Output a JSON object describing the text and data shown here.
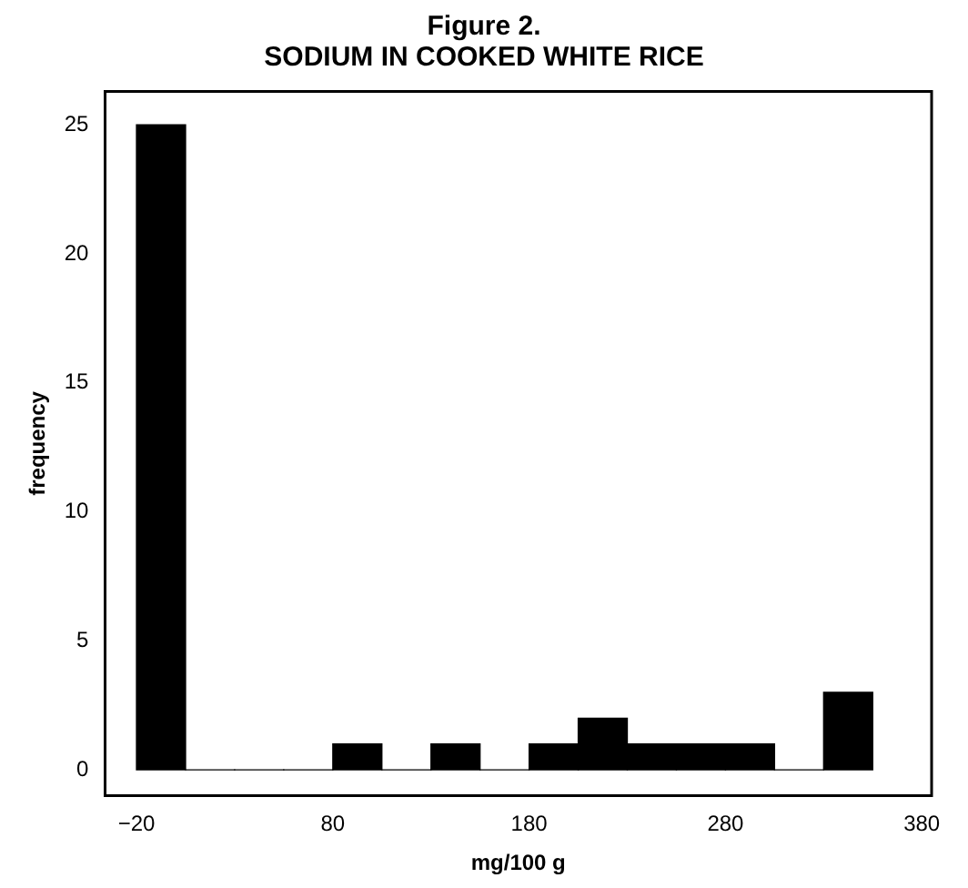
{
  "chart_data": {
    "type": "histogram",
    "title": "Figure 2.",
    "subtitle": "SODIUM IN COOKED WHITE RICE",
    "xlabel": "mg/100 g",
    "ylabel": "frequency",
    "bins": [
      -20,
      5,
      30,
      55,
      80,
      105,
      130,
      155,
      180,
      205,
      230,
      255,
      280,
      305,
      330,
      355
    ],
    "values": [
      25,
      0,
      0,
      0,
      1,
      0,
      1,
      0,
      1,
      2,
      1,
      1,
      1,
      0,
      3
    ],
    "color": "#000000",
    "xlim": [
      -36,
      385
    ],
    "xticks": [
      {
        "value": -20,
        "label": "−20"
      },
      80,
      180,
      280,
      380
    ],
    "ylim": [
      -1,
      26.3
    ],
    "yticks": [
      0,
      5,
      10,
      15,
      20,
      25
    ],
    "grid": false,
    "legend": false
  }
}
